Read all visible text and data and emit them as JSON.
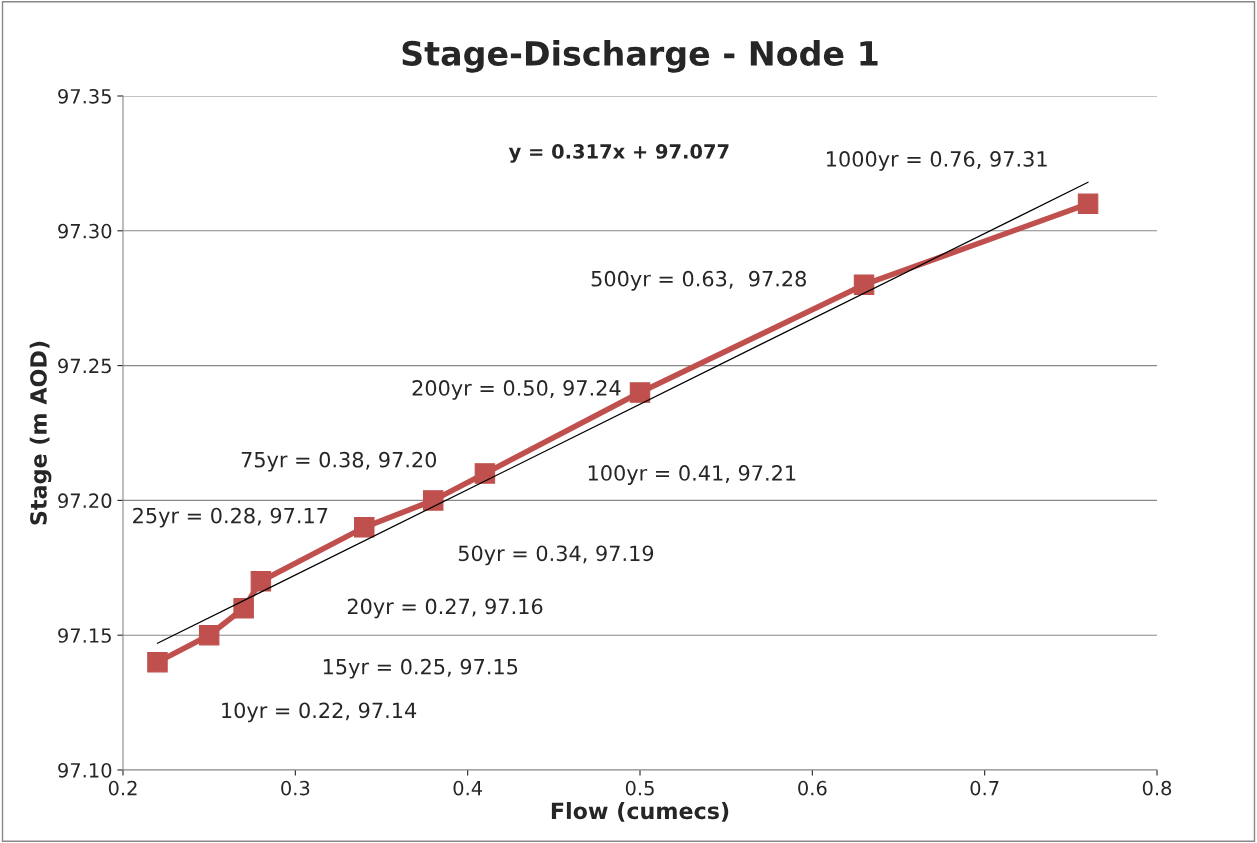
{
  "chart_data": {
    "type": "line",
    "title": "Stage-Discharge - Node 1",
    "xlabel": "Flow (cumecs)",
    "ylabel": "Stage (m AOD)",
    "xlim": [
      0.2,
      0.8
    ],
    "xticks": [
      0.2,
      0.3,
      0.4,
      0.5,
      0.6,
      0.7,
      0.8
    ],
    "ylim": [
      97.1,
      97.35
    ],
    "yticks": [
      {
        "value": 97.1,
        "label": "97.10"
      },
      {
        "value": 97.15,
        "label": "97.15"
      },
      {
        "value": 97.2,
        "label": "97.20"
      },
      {
        "value": 97.25,
        "label": "97.25"
      },
      {
        "value": 97.3,
        "label": "97.30"
      },
      {
        "value": 97.35,
        "label": "97.35"
      }
    ],
    "grid": "y",
    "marker": "square",
    "line_style": "solid",
    "series": [
      {
        "color": "#c0504d",
        "x": [
          0.22,
          0.25,
          0.27,
          0.28,
          0.34,
          0.38,
          0.41,
          0.5,
          0.63,
          0.76
        ],
        "values": [
          97.14,
          97.15,
          97.16,
          97.17,
          97.19,
          97.2,
          97.21,
          97.24,
          97.28,
          97.31
        ]
      },
      {
        "color": "#000000",
        "marker": "none",
        "x": [
          0.22,
          0.76
        ],
        "values": [
          97.147,
          97.318
        ]
      }
    ],
    "annotations": [
      "y = 0.317x + 97.077",
      "10yr = 0.22, 97.14",
      "15yr = 0.25, 97.15",
      "20yr = 0.27, 97.16",
      "25yr = 0.28, 97.17",
      "50yr = 0.34, 97.19",
      "75yr = 0.38, 97.20",
      "100yr = 0.41, 97.21",
      "200yr = 0.50, 97.24",
      "500yr = 0.63,  97.28",
      "1000yr = 0.76, 97.31"
    ]
  }
}
